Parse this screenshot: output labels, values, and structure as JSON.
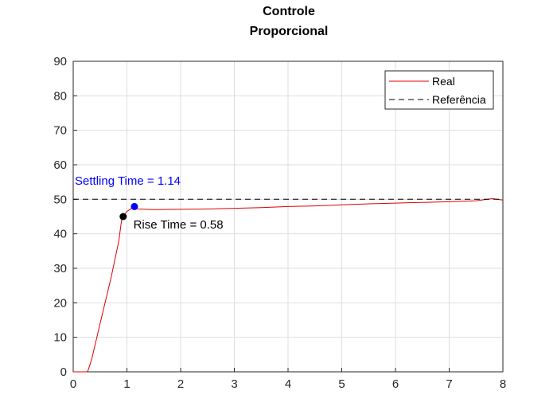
{
  "chart_data": {
    "type": "line",
    "title": [
      "Controle",
      "Proporcional"
    ],
    "xlabel": "",
    "ylabel": "",
    "xlim": [
      0,
      8
    ],
    "ylim": [
      0,
      90
    ],
    "xticks": [
      "0",
      "1",
      "2",
      "3",
      "4",
      "5",
      "6",
      "7",
      "8"
    ],
    "yticks": [
      "0",
      "10",
      "20",
      "30",
      "40",
      "50",
      "60",
      "70",
      "80",
      "90"
    ],
    "grid": true,
    "legend_position": "top-right",
    "series": [
      {
        "name": "Real",
        "color": "#e00000",
        "style": "solid",
        "x": [
          0,
          0.26,
          0.28,
          0.35,
          0.5,
          0.7,
          0.85,
          0.9,
          0.95,
          1.0,
          1.05,
          1.1,
          1.14,
          1.2,
          1.5,
          2,
          2.5,
          3,
          3.5,
          4,
          4.5,
          5,
          5.5,
          6,
          6.5,
          7,
          7.5,
          7.8,
          8
        ],
        "y": [
          0,
          0,
          0.5,
          4,
          14,
          27,
          38,
          44,
          45.5,
          46.5,
          47,
          47.5,
          47.9,
          47.2,
          47.0,
          47.1,
          47.2,
          47.4,
          47.6,
          47.9,
          48.1,
          48.4,
          48.7,
          48.9,
          49.1,
          49.3,
          49.6,
          50.2,
          49.8
        ]
      },
      {
        "name": "Referência",
        "color": "#000000",
        "style": "dashed",
        "x": [
          0,
          8
        ],
        "y": [
          50,
          50
        ]
      }
    ],
    "markers": [
      {
        "x": 0.93,
        "y": 45,
        "color": "#000000"
      },
      {
        "x": 1.14,
        "y": 47.9,
        "color": "#0000ff"
      }
    ],
    "annotations": [
      {
        "text": "Settling Time = 1.14",
        "x": 0.03,
        "y": 54.2,
        "color": "#0000ff"
      },
      {
        "text": "Rise Time = 0.58",
        "x": 1.12,
        "y": 41.5,
        "color": "#000000"
      }
    ]
  }
}
